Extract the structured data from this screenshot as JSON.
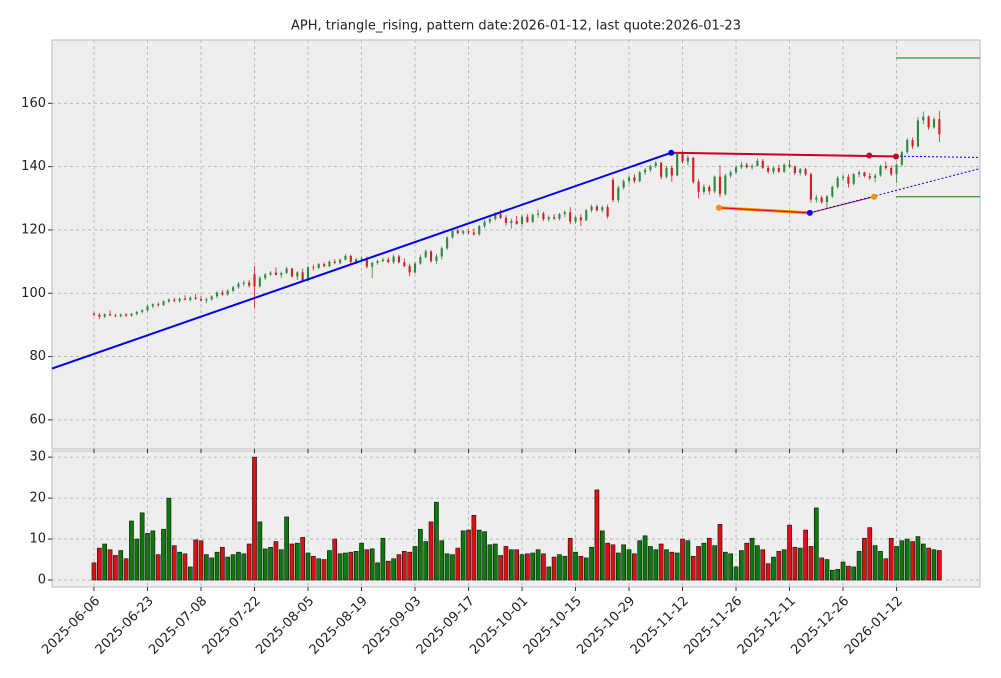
{
  "chart_data": {
    "type": "candlestick",
    "title": "APH, triangle_rising, pattern date:2026-01-12, last quote:2026-01-23",
    "up_color": "#2e8b3e",
    "down_color": "#d42020",
    "xlim": [
      -7.85,
      165.6
    ],
    "xticks": [
      {
        "value": 0,
        "label": "2025-06-06"
      },
      {
        "value": 10,
        "label": "2025-06-23"
      },
      {
        "value": 20,
        "label": "2025-07-08"
      },
      {
        "value": 30,
        "label": "2025-07-22"
      },
      {
        "value": 40,
        "label": "2025-08-05"
      },
      {
        "value": 50,
        "label": "2025-08-19"
      },
      {
        "value": 60,
        "label": "2025-09-03"
      },
      {
        "value": 70,
        "label": "2025-09-17"
      },
      {
        "value": 80,
        "label": "2025-10-01"
      },
      {
        "value": 90,
        "label": "2025-10-15"
      },
      {
        "value": 100,
        "label": "2025-10-29"
      },
      {
        "value": 110,
        "label": "2025-11-12"
      },
      {
        "value": 120,
        "label": "2025-11-26"
      },
      {
        "value": 130,
        "label": "2025-12-11"
      },
      {
        "value": 140,
        "label": "2025-12-26"
      },
      {
        "value": 150,
        "label": "2026-01-12"
      }
    ],
    "ylim": [
      50.8,
      180
    ],
    "yticks": [
      60,
      80,
      100,
      120,
      140,
      160
    ],
    "grid": true,
    "candles": [
      [
        93.6,
        94,
        92.8,
        93.2
      ],
      [
        93.2,
        93.8,
        91.8,
        92.6
      ],
      [
        92.6,
        93.6,
        92.2,
        93.4
      ],
      [
        93.4,
        94.6,
        92.8,
        93.0
      ],
      [
        93.0,
        93.6,
        92.4,
        92.8
      ],
      [
        92.8,
        93.6,
        92.4,
        93.3
      ],
      [
        93.3,
        93.8,
        92.6,
        92.9
      ],
      [
        92.9,
        93.8,
        92.6,
        93.5
      ],
      [
        93.5,
        94.4,
        93.0,
        94.1
      ],
      [
        94.1,
        95.0,
        93.6,
        94.6
      ],
      [
        94.6,
        96.4,
        94.2,
        95.9
      ],
      [
        95.9,
        96.8,
        95.3,
        96.5
      ],
      [
        96.5,
        97.2,
        95.8,
        96.2
      ],
      [
        96.2,
        97.8,
        96.0,
        97.4
      ],
      [
        97.4,
        98.4,
        97.0,
        98.0
      ],
      [
        98.0,
        98.6,
        97.2,
        97.6
      ],
      [
        97.6,
        98.6,
        97.0,
        98.3
      ],
      [
        98.3,
        99.4,
        97.8,
        97.9
      ],
      [
        97.9,
        99.0,
        97.4,
        98.6
      ],
      [
        98.6,
        99.8,
        98.0,
        98.2
      ],
      [
        98.2,
        99.2,
        97.4,
        97.7
      ],
      [
        97.7,
        98.6,
        96.8,
        98.1
      ],
      [
        98.1,
        99.4,
        97.6,
        99.0
      ],
      [
        99.0,
        100.6,
        98.4,
        100.2
      ],
      [
        100.2,
        101.0,
        99.2,
        99.6
      ],
      [
        99.6,
        101.2,
        99.2,
        100.8
      ],
      [
        100.8,
        102.4,
        100.4,
        101.9
      ],
      [
        101.9,
        103.6,
        101.4,
        103.0
      ],
      [
        103.0,
        104.0,
        102.2,
        103.4
      ],
      [
        103.4,
        104.2,
        101.8,
        102.4
      ],
      [
        106.0,
        108.6,
        95.2,
        102.2
      ],
      [
        102.2,
        105.4,
        101.8,
        104.8
      ],
      [
        104.8,
        106.4,
        104.2,
        105.9
      ],
      [
        105.9,
        107.0,
        105.4,
        106.5
      ],
      [
        106.5,
        108.2,
        105.6,
        105.8
      ],
      [
        105.8,
        106.8,
        104.8,
        106.4
      ],
      [
        106.4,
        108.4,
        106.0,
        107.8
      ],
      [
        107.8,
        108.0,
        105.0,
        105.3
      ],
      [
        105.3,
        107.0,
        104.2,
        106.6
      ],
      [
        106.6,
        107.8,
        103.6,
        104.0
      ],
      [
        104.0,
        108.6,
        103.8,
        108.2
      ],
      [
        108.2,
        109.0,
        107.2,
        108.0
      ],
      [
        108.0,
        109.6,
        107.6,
        109.2
      ],
      [
        109.2,
        109.8,
        108.2,
        108.6
      ],
      [
        108.6,
        110.4,
        108.2,
        110.0
      ],
      [
        110.0,
        110.8,
        109.2,
        109.6
      ],
      [
        109.6,
        111.0,
        109.2,
        110.6
      ],
      [
        110.6,
        112.4,
        110.4,
        111.8
      ],
      [
        111.8,
        112.2,
        109.4,
        109.9
      ],
      [
        109.9,
        111.2,
        109.2,
        110.8
      ],
      [
        110.8,
        111.6,
        110.2,
        111.0
      ],
      [
        111.0,
        111.6,
        107.8,
        108.4
      ],
      [
        108.4,
        110.0,
        104.8,
        109.6
      ],
      [
        109.6,
        110.6,
        109.0,
        110.2
      ],
      [
        110.2,
        111.2,
        109.8,
        110.6
      ],
      [
        110.6,
        111.4,
        109.6,
        109.8
      ],
      [
        109.8,
        112.2,
        109.2,
        111.6
      ],
      [
        111.6,
        112.2,
        109.4,
        109.8
      ],
      [
        109.8,
        111.0,
        108.2,
        108.6
      ],
      [
        108.6,
        109.4,
        105.4,
        106.6
      ],
      [
        106.6,
        110.0,
        106.2,
        109.4
      ],
      [
        109.4,
        112.2,
        109.0,
        111.4
      ],
      [
        111.4,
        113.8,
        111.0,
        113.2
      ],
      [
        113.2,
        113.6,
        109.6,
        110.2
      ],
      [
        110.2,
        112.4,
        109.2,
        111.6
      ],
      [
        111.6,
        114.8,
        110.6,
        114.2
      ],
      [
        114.2,
        118.0,
        113.6,
        117.6
      ],
      [
        117.6,
        120.6,
        117.2,
        119.8
      ],
      [
        119.8,
        120.6,
        118.6,
        119.0
      ],
      [
        119.0,
        120.0,
        118.4,
        119.6
      ],
      [
        119.6,
        120.2,
        118.6,
        119.2
      ],
      [
        119.2,
        120.4,
        118.2,
        118.6
      ],
      [
        118.6,
        121.6,
        118.2,
        121.2
      ],
      [
        121.2,
        123.2,
        120.6,
        122.6
      ],
      [
        122.6,
        124.0,
        122.0,
        123.4
      ],
      [
        123.4,
        125.6,
        123.0,
        125.0
      ],
      [
        125.0,
        126.4,
        123.4,
        123.8
      ],
      [
        123.8,
        124.6,
        121.4,
        122.2
      ],
      [
        122.2,
        123.6,
        120.4,
        122.8
      ],
      [
        122.8,
        124.4,
        121.6,
        121.9
      ],
      [
        121.9,
        124.8,
        121.2,
        124.2
      ],
      [
        124.2,
        125.0,
        122.2,
        122.6
      ],
      [
        122.6,
        125.2,
        122.2,
        124.8
      ],
      [
        124.8,
        126.4,
        123.8,
        125.2
      ],
      [
        125.2,
        125.8,
        122.8,
        123.4
      ],
      [
        123.4,
        124.6,
        122.6,
        124.0
      ],
      [
        124.0,
        125.0,
        123.2,
        123.6
      ],
      [
        123.6,
        125.4,
        123.0,
        125.0
      ],
      [
        125.0,
        126.2,
        124.0,
        125.6
      ],
      [
        125.6,
        127.2,
        121.8,
        122.6
      ],
      [
        122.6,
        124.4,
        122.0,
        124.0
      ],
      [
        124.0,
        125.0,
        121.2,
        123.0
      ],
      [
        123.0,
        126.6,
        122.8,
        126.2
      ],
      [
        126.2,
        128.0,
        125.6,
        127.4
      ],
      [
        127.4,
        128.0,
        125.8,
        126.2
      ],
      [
        126.2,
        127.8,
        125.6,
        127.2
      ],
      [
        127.2,
        128.0,
        123.6,
        124.2
      ],
      [
        135.8,
        136.6,
        128.8,
        129.4
      ],
      [
        129.4,
        134.0,
        128.6,
        133.4
      ],
      [
        133.4,
        136.0,
        132.8,
        135.4
      ],
      [
        135.4,
        137.2,
        134.6,
        136.6
      ],
      [
        136.6,
        137.6,
        134.8,
        135.4
      ],
      [
        135.4,
        138.6,
        135.0,
        138.2
      ],
      [
        138.2,
        139.6,
        137.4,
        139.0
      ],
      [
        139.0,
        140.6,
        138.4,
        140.2
      ],
      [
        140.2,
        141.8,
        139.6,
        141.2
      ],
      [
        141.2,
        141.6,
        136.0,
        136.8
      ],
      [
        136.8,
        140.2,
        136.2,
        139.6
      ],
      [
        139.6,
        140.4,
        135.2,
        137.2
      ],
      [
        137.2,
        144.6,
        137.0,
        144.0
      ],
      [
        144.0,
        145.0,
        141.0,
        141.6
      ],
      [
        141.6,
        143.6,
        140.4,
        142.8
      ],
      [
        142.8,
        143.0,
        134.6,
        135.2
      ],
      [
        135.2,
        136.0,
        130.0,
        132.0
      ],
      [
        132.0,
        134.4,
        131.2,
        133.6
      ],
      [
        133.6,
        134.2,
        131.2,
        132.2
      ],
      [
        132.2,
        137.2,
        131.6,
        136.8
      ],
      [
        136.8,
        140.4,
        130.4,
        131.4
      ],
      [
        131.4,
        137.8,
        130.8,
        137.2
      ],
      [
        137.2,
        138.8,
        136.4,
        138.2
      ],
      [
        138.2,
        140.4,
        137.6,
        139.8
      ],
      [
        139.8,
        141.6,
        139.2,
        140.6
      ],
      [
        140.6,
        141.2,
        139.4,
        139.8
      ],
      [
        139.8,
        140.8,
        139.0,
        140.2
      ],
      [
        140.2,
        142.6,
        140.0,
        141.8
      ],
      [
        141.8,
        142.4,
        139.2,
        139.6
      ],
      [
        139.6,
        140.4,
        137.8,
        138.4
      ],
      [
        138.4,
        140.0,
        137.6,
        139.6
      ],
      [
        139.6,
        140.6,
        138.0,
        138.4
      ],
      [
        138.4,
        141.0,
        138.0,
        140.6
      ],
      [
        140.6,
        142.0,
        139.6,
        140.0
      ],
      [
        140.0,
        140.4,
        137.4,
        138.0
      ],
      [
        138.0,
        139.6,
        137.2,
        139.2
      ],
      [
        139.2,
        139.6,
        137.0,
        137.6
      ],
      [
        137.6,
        138.2,
        128.6,
        129.6
      ],
      [
        129.6,
        131.0,
        128.6,
        130.2
      ],
      [
        130.2,
        130.8,
        128.2,
        128.8
      ],
      [
        128.8,
        131.0,
        126.8,
        130.6
      ],
      [
        130.6,
        134.0,
        130.2,
        133.6
      ],
      [
        133.6,
        137.0,
        133.0,
        136.4
      ],
      [
        136.4,
        137.4,
        135.6,
        136.8
      ],
      [
        136.8,
        137.6,
        133.4,
        134.6
      ],
      [
        134.6,
        138.0,
        134.0,
        137.6
      ],
      [
        137.6,
        138.8,
        136.6,
        138.2
      ],
      [
        138.2,
        138.4,
        136.6,
        137.0
      ],
      [
        137.0,
        138.0,
        135.8,
        136.4
      ],
      [
        136.4,
        137.8,
        135.0,
        137.2
      ],
      [
        137.2,
        140.6,
        136.8,
        140.2
      ],
      [
        140.2,
        141.6,
        139.0,
        139.6
      ],
      [
        139.6,
        140.4,
        137.0,
        137.6
      ],
      [
        137.6,
        141.0,
        134.8,
        140.6
      ],
      [
        140.6,
        145.0,
        140.0,
        144.6
      ],
      [
        144.6,
        149.0,
        144.0,
        148.4
      ],
      [
        148.4,
        149.2,
        145.6,
        146.4
      ],
      [
        146.4,
        155.6,
        146.0,
        154.6
      ],
      [
        154.6,
        157.4,
        153.4,
        155.8
      ],
      [
        155.8,
        156.2,
        151.6,
        152.4
      ],
      [
        152.4,
        155.6,
        152.0,
        155.0
      ],
      [
        155.0,
        157.6,
        147.8,
        150.2
      ]
    ],
    "volume": {
      "ylim": [
        -1.7,
        31.5
      ],
      "yticks": [
        0,
        10,
        20,
        30
      ],
      "values": [
        4.2,
        7.8,
        8.8,
        7.4,
        6.0,
        7.2,
        5.2,
        14.4,
        10.0,
        16.4,
        11.4,
        12.0,
        6.2,
        12.4,
        20.0,
        8.4,
        6.8,
        6.4,
        3.2,
        9.8,
        9.6,
        6.2,
        5.4,
        6.8,
        8.0,
        5.6,
        6.2,
        6.8,
        6.4,
        8.8,
        30.0,
        14.2,
        7.6,
        8.0,
        9.4,
        7.4,
        15.4,
        8.8,
        9.0,
        10.4,
        6.6,
        5.8,
        5.2,
        5.0,
        7.2,
        10.0,
        6.4,
        6.6,
        6.8,
        7.0,
        9.0,
        7.4,
        7.6,
        4.2,
        10.2,
        4.6,
        5.2,
        6.2,
        7.0,
        6.8,
        8.2,
        12.4,
        9.4,
        14.2,
        19.0,
        9.6,
        6.4,
        6.2,
        7.8,
        12.0,
        12.2,
        15.8,
        12.2,
        11.8,
        8.6,
        8.8,
        6.0,
        8.2,
        7.4,
        7.4,
        6.2,
        6.4,
        6.6,
        7.4,
        6.4,
        3.2,
        5.6,
        6.2,
        5.8,
        10.2,
        6.8,
        5.8,
        5.4,
        8.0,
        22.0,
        12.0,
        9.0,
        8.6,
        6.6,
        8.6,
        7.4,
        6.4,
        9.6,
        10.8,
        8.2,
        7.4,
        8.8,
        7.4,
        6.8,
        6.6,
        10.0,
        9.6,
        5.8,
        8.2,
        9.0,
        10.2,
        8.4,
        13.6,
        6.8,
        6.4,
        3.2,
        7.2,
        9.0,
        10.2,
        8.4,
        7.4,
        4.0,
        5.6,
        7.0,
        7.4,
        13.4,
        8.0,
        7.8,
        12.2,
        8.2,
        17.6,
        5.4,
        5.0,
        2.4,
        2.6,
        4.4,
        3.4,
        3.2,
        7.0,
        10.2,
        12.8,
        8.4,
        7.0,
        5.2,
        10.2,
        8.2,
        9.6,
        10.0,
        9.4,
        10.6,
        8.8,
        7.8,
        7.4,
        7.2
      ]
    },
    "lines": [
      {
        "color": "#ff8c00",
        "width": 3,
        "dash": false,
        "points": [
          [
            116.8,
            127.0
          ],
          [
            133.8,
            125.4
          ]
        ]
      },
      {
        "color": "#0000ee",
        "width": 2,
        "dash": false,
        "points": [
          [
            -7.85,
            76.2
          ],
          [
            107.9,
            144.4
          ]
        ]
      },
      {
        "color": "#cc0022",
        "width": 2,
        "dash": false,
        "points": [
          [
            107.9,
            144.4
          ],
          [
            149.9,
            143.2
          ]
        ]
      },
      {
        "color": "#cc0022",
        "width": 1,
        "dash": false,
        "points": [
          [
            116.8,
            127.0
          ],
          [
            133.8,
            125.4
          ]
        ]
      },
      {
        "color": "#cc0022",
        "width": 1,
        "dash": false,
        "points": [
          [
            133.8,
            125.4
          ],
          [
            145.8,
            130.5
          ]
        ]
      },
      {
        "color": "#0000ee",
        "width": 1,
        "dash": true,
        "points": [
          [
            149.9,
            143.3
          ],
          [
            165.6,
            142.9
          ]
        ]
      },
      {
        "color": "#0000ee",
        "width": 1,
        "dash": true,
        "points": [
          [
            133.8,
            125.4
          ],
          [
            165.6,
            139.4
          ]
        ]
      },
      {
        "color": "#008000",
        "width": 1,
        "dash": false,
        "points": [
          [
            149.9,
            174.3
          ],
          [
            165.6,
            174.3
          ]
        ]
      },
      {
        "color": "#008000",
        "width": 1,
        "dash": false,
        "points": [
          [
            149.9,
            130.5
          ],
          [
            165.6,
            130.5
          ]
        ]
      }
    ],
    "markers": [
      {
        "color": "#0000ee",
        "points": [
          [
            107.9,
            144.4
          ],
          [
            133.8,
            125.4
          ]
        ]
      },
      {
        "color": "#cc0022",
        "points": [
          [
            144.9,
            143.5
          ],
          [
            149.9,
            143.2
          ]
        ]
      },
      {
        "color": "#ff8c00",
        "points": [
          [
            116.8,
            127.0
          ],
          [
            145.8,
            130.5
          ]
        ]
      }
    ]
  }
}
